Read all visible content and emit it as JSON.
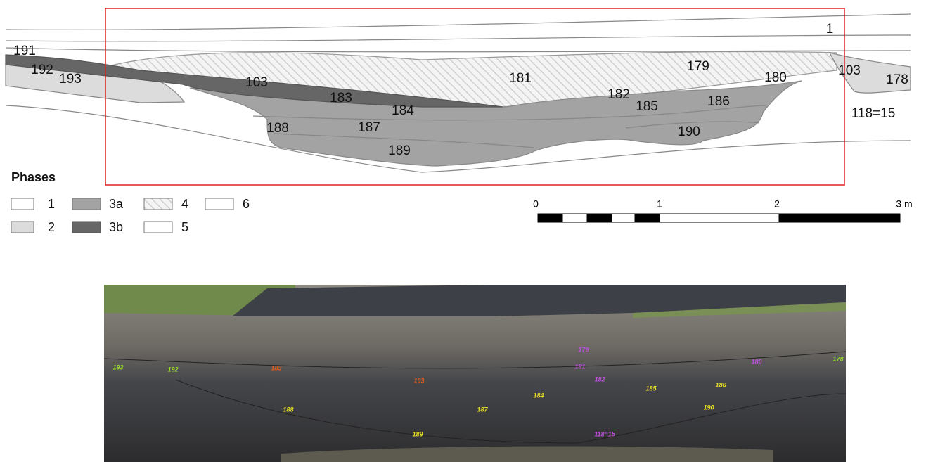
{
  "section": {
    "labels": [
      "1",
      "191",
      "192",
      "193",
      "103",
      "183",
      "184",
      "188",
      "187",
      "189",
      "181",
      "179",
      "182",
      "185",
      "186",
      "180",
      "103",
      "178",
      "190",
      "118=15"
    ]
  },
  "legend": {
    "title": "Phases",
    "items": [
      "1",
      "2",
      "3a",
      "3b",
      "4",
      "5",
      "6"
    ]
  },
  "scale": {
    "labels": [
      "0",
      "1",
      "2",
      "3 m"
    ]
  },
  "photo": {
    "labels": [
      "193",
      "192",
      "183",
      "103",
      "188",
      "187",
      "189",
      "184",
      "181",
      "179",
      "182",
      "185",
      "186",
      "190",
      "180",
      "178",
      "118=15"
    ]
  }
}
